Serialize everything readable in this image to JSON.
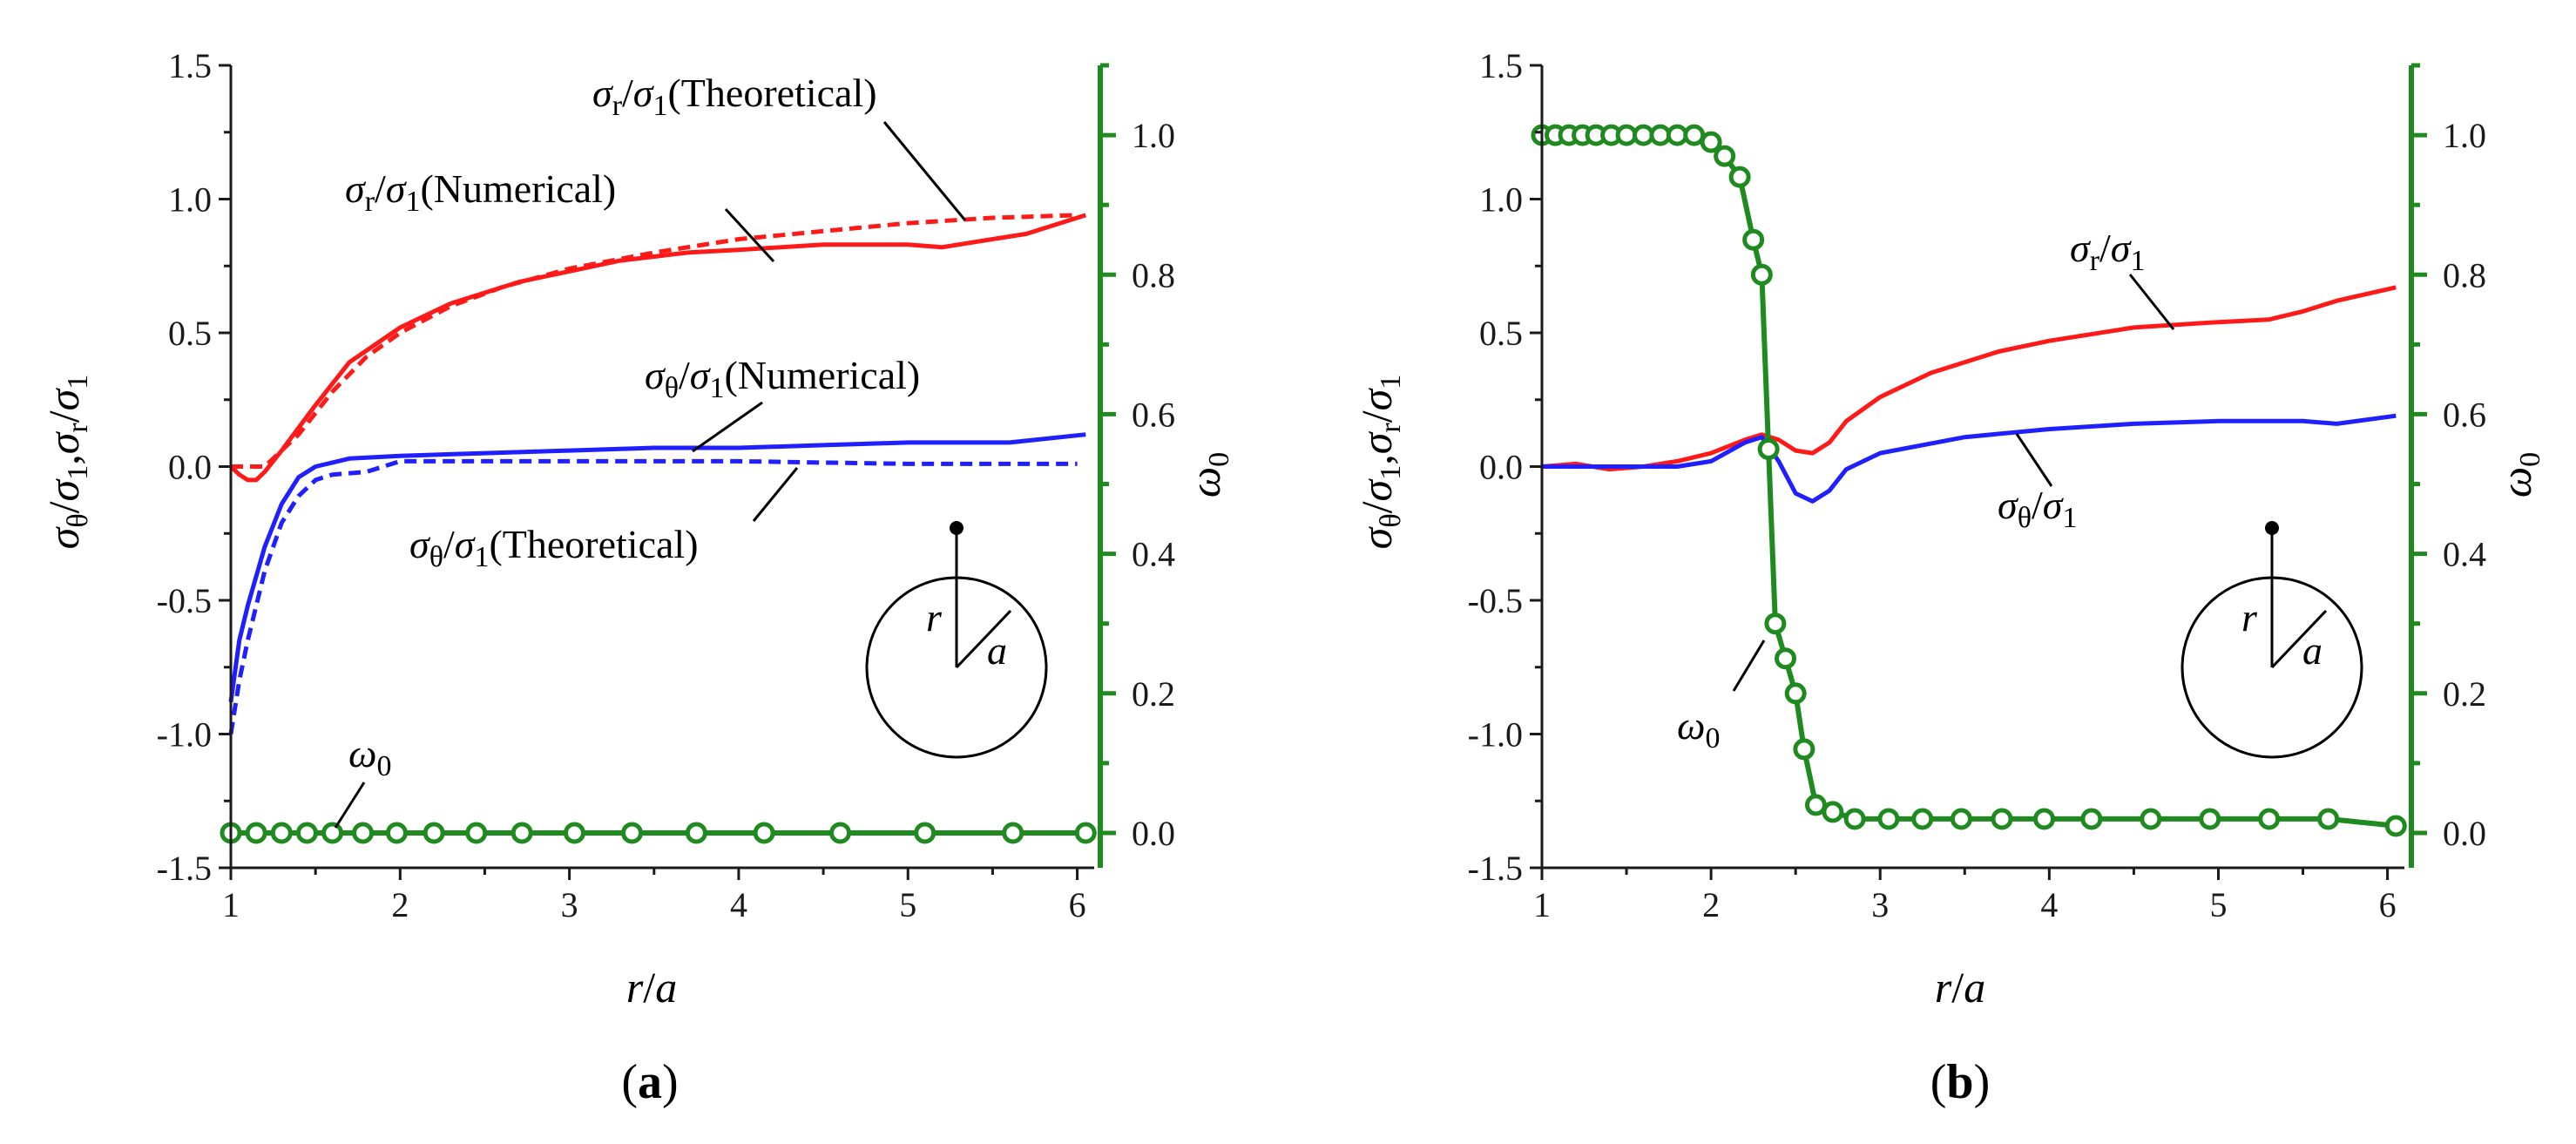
{
  "colors": {
    "red": "#ff1a1a",
    "blue": "#1f1fff",
    "green": "#1f8a1f",
    "axis": "#1a1a1a"
  },
  "chart_data": [
    {
      "type": "line",
      "panel_label": "(a)",
      "panel_letter": "a",
      "xlabel": "r/a",
      "ylabel": "σθ/σ1, σr/σ1",
      "y2label": "ω0",
      "xlim": [
        1,
        6.1
      ],
      "ylim": [
        -1.5,
        1.5
      ],
      "y2lim": [
        -0.05,
        1.1
      ],
      "x_ticks": [
        1,
        2,
        3,
        4,
        5,
        6
      ],
      "y_ticks": [
        "1.5",
        "1.0",
        "0.5",
        "0.0",
        "-0.5",
        "-1.0",
        "-1.5"
      ],
      "y2_ticks": [
        "1.0",
        "0.8",
        "0.6",
        "0.4",
        "0.2",
        "0.0"
      ],
      "inset": {
        "r_label": "r",
        "a_label": "a"
      },
      "series": [
        {
          "name": "σr/σ1 (Numerical)",
          "color": "red",
          "dash": false,
          "x": [
            1.0,
            1.05,
            1.1,
            1.15,
            1.2,
            1.3,
            1.5,
            1.7,
            2.0,
            2.3,
            2.7,
            3.0,
            3.3,
            3.7,
            4.0,
            4.5,
            5.0,
            5.2,
            5.5,
            5.7,
            6.05
          ],
          "y": [
            0.0,
            -0.03,
            -0.05,
            -0.05,
            -0.02,
            0.06,
            0.23,
            0.39,
            0.52,
            0.61,
            0.69,
            0.73,
            0.77,
            0.8,
            0.81,
            0.83,
            0.83,
            0.82,
            0.85,
            0.87,
            0.94
          ]
        },
        {
          "name": "σr/σ1 (Theoretical)",
          "color": "red",
          "dash": true,
          "x": [
            1.0,
            1.2,
            1.4,
            1.6,
            1.8,
            2.0,
            2.3,
            2.6,
            3.0,
            3.5,
            4.0,
            4.5,
            5.0,
            5.5,
            6.0
          ],
          "y": [
            0.0,
            0.0,
            0.12,
            0.28,
            0.41,
            0.5,
            0.6,
            0.67,
            0.74,
            0.8,
            0.85,
            0.88,
            0.91,
            0.93,
            0.94
          ]
        },
        {
          "name": "σθ/σ1 (Numerical)",
          "color": "blue",
          "dash": false,
          "x": [
            1.0,
            1.05,
            1.1,
            1.2,
            1.3,
            1.4,
            1.5,
            1.7,
            2.0,
            2.5,
            3.0,
            3.5,
            4.0,
            4.5,
            5.0,
            5.6,
            6.05
          ],
          "y": [
            -0.88,
            -0.65,
            -0.52,
            -0.3,
            -0.14,
            -0.04,
            0.0,
            0.03,
            0.04,
            0.05,
            0.06,
            0.07,
            0.07,
            0.08,
            0.09,
            0.09,
            0.12
          ]
        },
        {
          "name": "σθ/σ1 (Theoretical)",
          "color": "blue",
          "dash": true,
          "x": [
            1.0,
            1.05,
            1.1,
            1.2,
            1.3,
            1.4,
            1.5,
            1.6,
            1.8,
            2.0,
            2.5,
            3.0,
            4.0,
            5.0,
            6.0
          ],
          "y": [
            -1.0,
            -0.8,
            -0.65,
            -0.39,
            -0.21,
            -0.11,
            -0.05,
            -0.03,
            -0.02,
            0.02,
            0.02,
            0.02,
            0.02,
            0.01,
            0.01
          ]
        },
        {
          "name": "ω0",
          "color": "green",
          "dash": false,
          "axis": "y2",
          "markers": true,
          "x": [
            1.0,
            1.15,
            1.3,
            1.45,
            1.6,
            1.78,
            1.98,
            2.2,
            2.45,
            2.72,
            3.03,
            3.37,
            3.75,
            4.15,
            4.6,
            5.1,
            5.62,
            6.05
          ],
          "y": [
            0.0,
            0.0,
            0.0,
            0.0,
            0.0,
            0.0,
            0.0,
            0.0,
            0.0,
            0.0,
            0.0,
            0.0,
            0.0,
            0.0,
            0.0,
            0.0,
            0.0,
            0.0
          ]
        }
      ],
      "annotations": [
        {
          "sym": "σ",
          "sub1": "r",
          "mid": "/σ",
          "sub2": "1",
          "text": "(Theoretical)"
        },
        {
          "sym": "σ",
          "sub1": "r",
          "mid": "/σ",
          "sub2": "1",
          "text": "(Numerical)"
        },
        {
          "sym": "σ",
          "sub1": "θ",
          "mid": "/σ",
          "sub2": "1",
          "text": "(Numerical)"
        },
        {
          "sym": "σ",
          "sub1": "θ",
          "mid": "/σ",
          "sub2": "1",
          "text": "(Theoretical)"
        },
        {
          "sym": "ω",
          "sub1": "0",
          "mid": "",
          "sub2": "",
          "text": ""
        }
      ]
    },
    {
      "type": "line",
      "panel_label": "(b)",
      "panel_letter": "b",
      "xlabel": "r/a",
      "ylabel": "σθ/σ1, σr/σ1",
      "y2label": "ω0",
      "xlim": [
        1,
        6.1
      ],
      "ylim": [
        -1.5,
        1.5
      ],
      "y2lim": [
        -0.05,
        1.1
      ],
      "x_ticks": [
        1,
        2,
        3,
        4,
        5,
        6
      ],
      "y_ticks": [
        "1.5",
        "1.0",
        "0.5",
        "0.0",
        "-0.5",
        "-1.0",
        "-1.5"
      ],
      "y2_ticks": [
        "1.0",
        "0.8",
        "0.6",
        "0.4",
        "0.2",
        "0.0"
      ],
      "inset": {
        "r_label": "r",
        "a_label": "a"
      },
      "series": [
        {
          "name": "σr/σ1",
          "color": "red",
          "dash": false,
          "x": [
            1.0,
            1.2,
            1.4,
            1.6,
            1.8,
            2.0,
            2.2,
            2.3,
            2.4,
            2.5,
            2.6,
            2.7,
            2.8,
            3.0,
            3.3,
            3.7,
            4.0,
            4.5,
            5.0,
            5.3,
            5.5,
            5.7,
            6.05
          ],
          "y": [
            0.0,
            0.01,
            -0.01,
            0.0,
            0.02,
            0.05,
            0.1,
            0.12,
            0.1,
            0.06,
            0.05,
            0.09,
            0.17,
            0.26,
            0.35,
            0.43,
            0.47,
            0.52,
            0.54,
            0.55,
            0.58,
            0.62,
            0.67
          ]
        },
        {
          "name": "σθ/σ1",
          "color": "blue",
          "dash": false,
          "x": [
            1.0,
            1.2,
            1.5,
            1.8,
            2.0,
            2.2,
            2.3,
            2.4,
            2.5,
            2.6,
            2.7,
            2.8,
            3.0,
            3.5,
            4.0,
            4.5,
            5.0,
            5.5,
            5.7,
            6.05
          ],
          "y": [
            0.0,
            0.0,
            0.0,
            0.0,
            0.02,
            0.09,
            0.11,
            0.02,
            -0.1,
            -0.13,
            -0.09,
            -0.01,
            0.05,
            0.11,
            0.14,
            0.16,
            0.17,
            0.17,
            0.16,
            0.19
          ]
        },
        {
          "name": "ω0",
          "color": "green",
          "dash": false,
          "axis": "y2",
          "markers": true,
          "x": [
            1.0,
            1.08,
            1.16,
            1.24,
            1.32,
            1.41,
            1.5,
            1.6,
            1.7,
            1.8,
            1.9,
            2.0,
            2.08,
            2.17,
            2.25,
            2.3,
            2.34,
            2.38,
            2.44,
            2.5,
            2.55,
            2.62,
            2.72,
            2.85,
            3.05,
            3.25,
            3.48,
            3.72,
            3.97,
            4.25,
            4.6,
            4.95,
            5.3,
            5.65,
            6.05
          ],
          "y": [
            1.0,
            1.0,
            1.0,
            1.0,
            1.0,
            1.0,
            1.0,
            1.0,
            1.0,
            1.0,
            1.0,
            0.99,
            0.97,
            0.94,
            0.85,
            0.8,
            0.55,
            0.3,
            0.25,
            0.2,
            0.12,
            0.04,
            0.03,
            0.02,
            0.02,
            0.02,
            0.02,
            0.02,
            0.02,
            0.02,
            0.02,
            0.02,
            0.02,
            0.02,
            0.01
          ]
        }
      ],
      "annotations": [
        {
          "sym": "σ",
          "sub1": "r",
          "mid": "/σ",
          "sub2": "1",
          "text": ""
        },
        {
          "sym": "σ",
          "sub1": "θ",
          "mid": "/σ",
          "sub2": "1",
          "text": ""
        },
        {
          "sym": "ω",
          "sub1": "0",
          "mid": "",
          "sub2": "",
          "text": ""
        }
      ]
    }
  ]
}
